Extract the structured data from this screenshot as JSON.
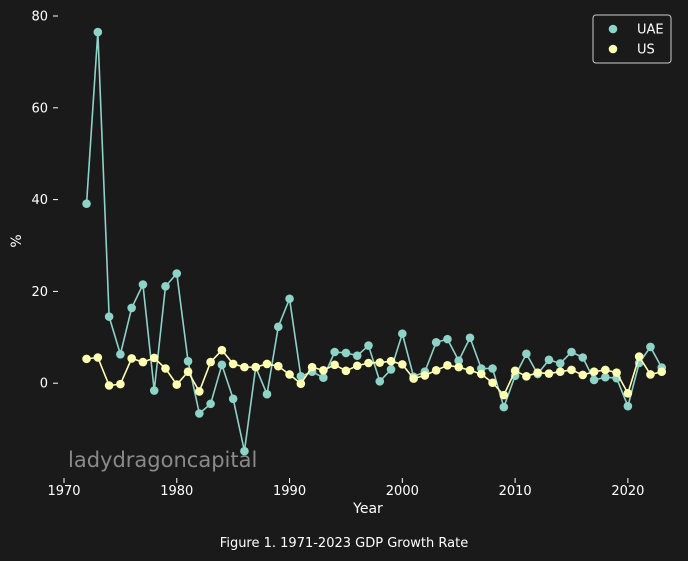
{
  "caption": "Figure 1. 1971-2023 GDP Growth Rate",
  "watermark": "ladydragoncapital",
  "chart_data": {
    "type": "line",
    "xlabel": "Year",
    "ylabel": "%",
    "xlim": [
      1970,
      2024
    ],
    "ylim": [
      -20,
      80
    ],
    "xticks": [
      1970,
      1980,
      1990,
      2000,
      2010,
      2020
    ],
    "yticks": [
      0,
      20,
      40,
      60,
      80
    ],
    "grid": false,
    "legend_position": "top-right",
    "marker": "circle",
    "x": [
      1972,
      1973,
      1974,
      1975,
      1976,
      1977,
      1978,
      1979,
      1980,
      1981,
      1982,
      1983,
      1984,
      1985,
      1986,
      1987,
      1988,
      1989,
      1990,
      1991,
      1992,
      1993,
      1994,
      1995,
      1996,
      1997,
      1998,
      1999,
      2000,
      2001,
      2002,
      2003,
      2004,
      2005,
      2006,
      2007,
      2008,
      2009,
      2010,
      2011,
      2012,
      2013,
      2014,
      2015,
      2016,
      2017,
      2018,
      2019,
      2020,
      2021,
      2022,
      2023
    ],
    "series": [
      {
        "name": "UAE",
        "color": "#8dd3c7",
        "values": [
          39.1,
          76.5,
          14.5,
          6.3,
          16.4,
          21.5,
          -1.6,
          21.1,
          23.9,
          4.8,
          -6.6,
          -4.5,
          4.0,
          -3.4,
          -14.8,
          3.5,
          -2.4,
          12.3,
          18.4,
          1.5,
          2.5,
          1.2,
          6.8,
          6.6,
          6.0,
          8.2,
          0.4,
          3.0,
          10.8,
          1.4,
          2.5,
          8.9,
          9.6,
          4.9,
          9.9,
          3.2,
          3.2,
          -5.2,
          1.6,
          6.4,
          2.0,
          5.1,
          4.3,
          6.8,
          5.6,
          0.7,
          1.3,
          1.1,
          -5.0,
          4.4,
          7.9,
          3.4
        ]
      },
      {
        "name": "US",
        "color": "#ffffb3",
        "values": [
          5.3,
          5.6,
          -0.5,
          -0.2,
          5.4,
          4.6,
          5.5,
          3.2,
          -0.3,
          2.5,
          -1.8,
          4.6,
          7.2,
          4.2,
          3.5,
          3.5,
          4.2,
          3.7,
          1.9,
          -0.1,
          3.5,
          2.8,
          4.0,
          2.7,
          3.8,
          4.4,
          4.5,
          4.8,
          4.1,
          1.0,
          1.7,
          2.8,
          3.9,
          3.5,
          2.8,
          2.0,
          0.1,
          -2.6,
          2.7,
          1.5,
          2.3,
          2.1,
          2.5,
          2.9,
          1.8,
          2.5,
          2.9,
          2.3,
          -2.2,
          5.8,
          1.9,
          2.5
        ]
      }
    ]
  }
}
